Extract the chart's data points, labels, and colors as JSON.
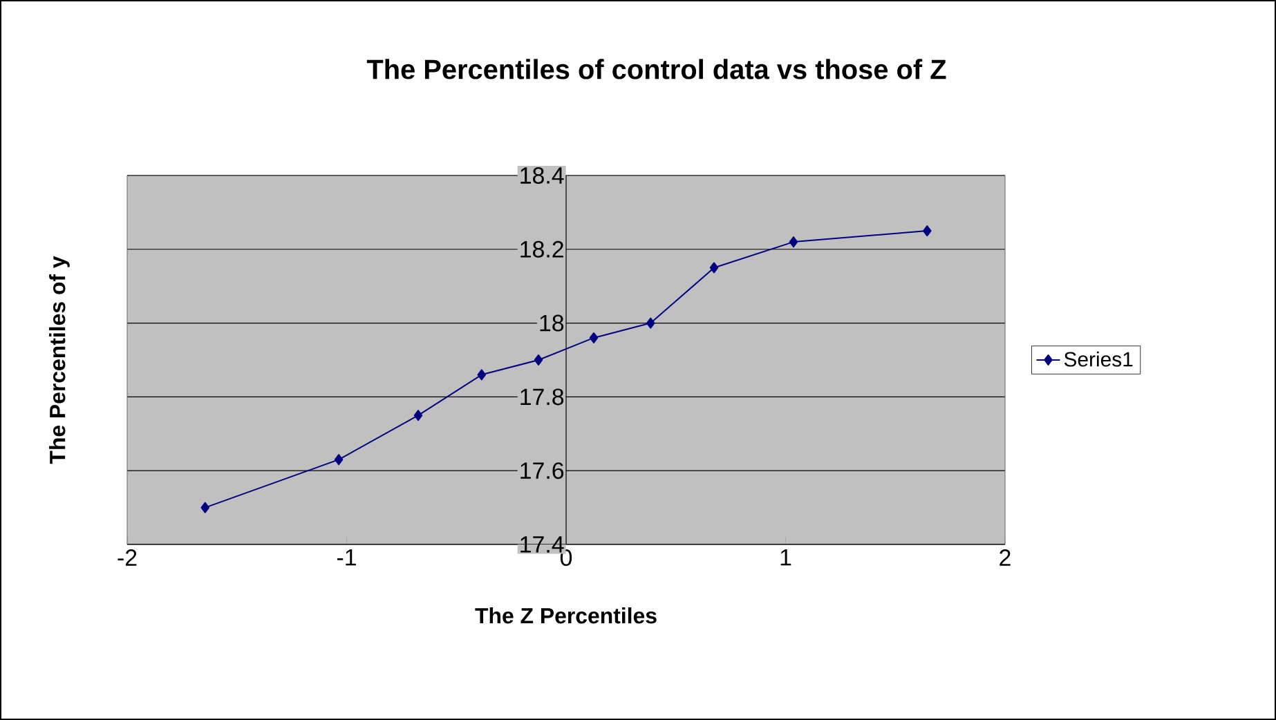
{
  "chart_data": {
    "type": "line",
    "title": "The Percentiles of control data vs those of Z",
    "xlabel": "The Z Percentiles",
    "ylabel": "The Percentiles of y",
    "series": [
      {
        "name": "Series1",
        "color": "#000080",
        "x": [
          -1.645,
          -1.036,
          -0.674,
          -0.385,
          -0.126,
          0.126,
          0.385,
          0.674,
          1.036,
          1.645
        ],
        "values": [
          17.5,
          17.63,
          17.75,
          17.86,
          17.9,
          17.96,
          18.0,
          18.15,
          18.22,
          18.25
        ]
      }
    ],
    "xlim": [
      -2,
      2
    ],
    "xticks": [
      -2,
      -1,
      0,
      1,
      2
    ],
    "ylim": [
      17.4,
      18.4
    ],
    "yticks": [
      17.4,
      17.6,
      17.8,
      18,
      18.2,
      18.4
    ],
    "grid": "y",
    "legend": "right",
    "marker": "diamond",
    "line_style": "solid"
  }
}
